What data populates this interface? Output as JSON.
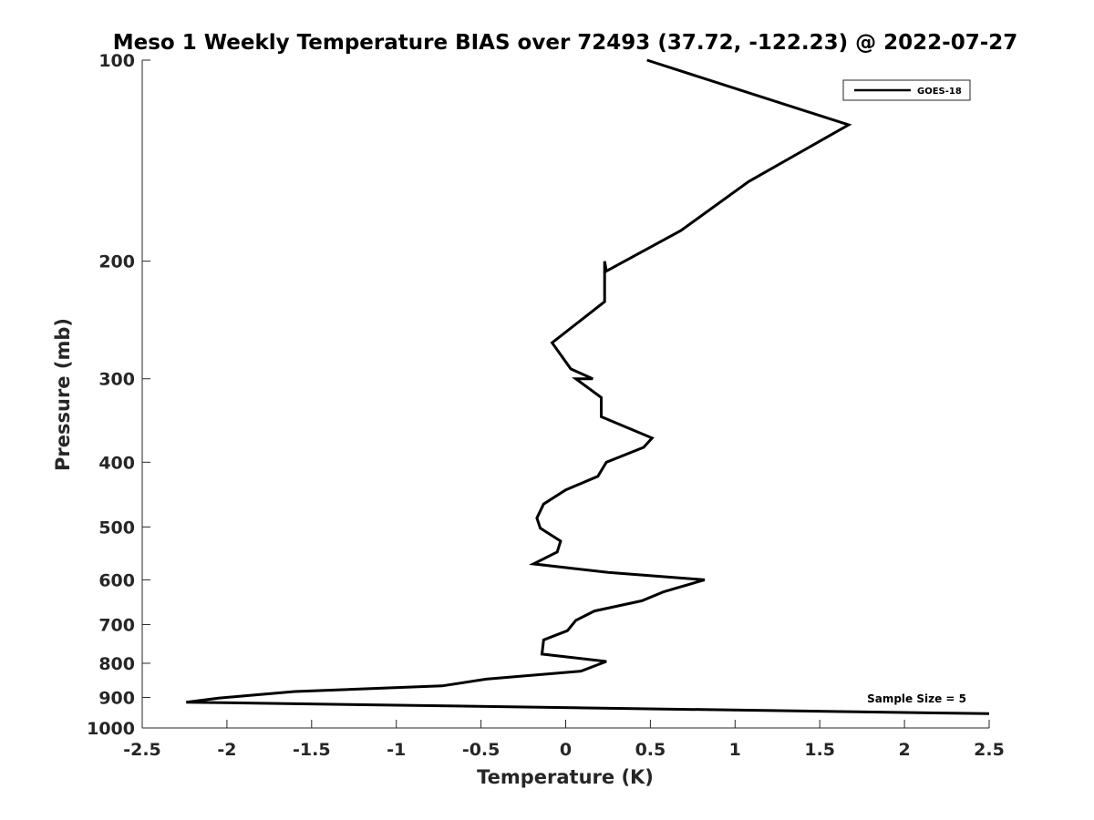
{
  "chart_data": {
    "type": "line",
    "title": "Meso 1 Weekly Temperature BIAS over 72493 (37.72, -122.23) @ 2022-07-27",
    "xlabel": "Temperature (K)",
    "ylabel": "Pressure (mb)",
    "xlim": [
      -2.5,
      2.5
    ],
    "ylim": [
      1000,
      100
    ],
    "y_scale": "log",
    "y_reversed": true,
    "x_ticks": [
      "-2.5",
      "-2",
      "-1.5",
      "-1",
      "-0.5",
      "0",
      "0.5",
      "1",
      "1.5",
      "2",
      "2.5"
    ],
    "y_ticks": [
      "100",
      "200",
      "300",
      "400",
      "500",
      "600",
      "700",
      "800",
      "900",
      "1000"
    ],
    "grid": false,
    "legend_position": "top-right",
    "line_color": "#000000",
    "annotation": "Sample Size = 5",
    "series": [
      {
        "name": "GOES-18",
        "points": [
          {
            "x": 0.48,
            "y": 100
          },
          {
            "x": 1.67,
            "y": 125
          },
          {
            "x": 1.08,
            "y": 152
          },
          {
            "x": 0.68,
            "y": 180
          },
          {
            "x": 0.24,
            "y": 207
          },
          {
            "x": 0.23,
            "y": 200
          },
          {
            "x": 0.23,
            "y": 230
          },
          {
            "x": -0.08,
            "y": 265
          },
          {
            "x": 0.03,
            "y": 290
          },
          {
            "x": 0.16,
            "y": 300
          },
          {
            "x": 0.06,
            "y": 300
          },
          {
            "x": 0.21,
            "y": 320
          },
          {
            "x": 0.21,
            "y": 342
          },
          {
            "x": 0.51,
            "y": 368
          },
          {
            "x": 0.46,
            "y": 380
          },
          {
            "x": 0.24,
            "y": 400
          },
          {
            "x": 0.19,
            "y": 420
          },
          {
            "x": 0.0,
            "y": 440
          },
          {
            "x": -0.13,
            "y": 462
          },
          {
            "x": -0.17,
            "y": 485
          },
          {
            "x": -0.15,
            "y": 502
          },
          {
            "x": -0.03,
            "y": 525
          },
          {
            "x": -0.05,
            "y": 545
          },
          {
            "x": -0.19,
            "y": 568
          },
          {
            "x": 0.25,
            "y": 585
          },
          {
            "x": 0.82,
            "y": 600
          },
          {
            "x": 0.58,
            "y": 625
          },
          {
            "x": 0.45,
            "y": 645
          },
          {
            "x": 0.17,
            "y": 668
          },
          {
            "x": 0.06,
            "y": 690
          },
          {
            "x": 0.01,
            "y": 715
          },
          {
            "x": -0.13,
            "y": 738
          },
          {
            "x": -0.14,
            "y": 775
          },
          {
            "x": 0.24,
            "y": 795
          },
          {
            "x": 0.09,
            "y": 822
          },
          {
            "x": -0.47,
            "y": 845
          },
          {
            "x": -0.73,
            "y": 865
          },
          {
            "x": -1.6,
            "y": 882
          },
          {
            "x": -2.05,
            "y": 902
          },
          {
            "x": -2.24,
            "y": 915
          },
          {
            "x": 2.5,
            "y": 952
          }
        ]
      }
    ]
  }
}
